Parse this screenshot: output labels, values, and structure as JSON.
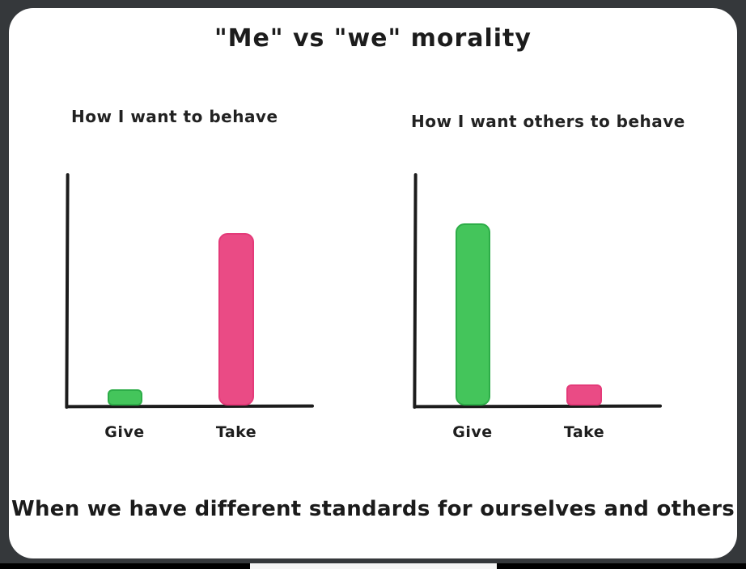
{
  "frame": {
    "background_color": "#35383b",
    "card_color": "#ffffff",
    "bottom_strip_color": "#000000",
    "bottom_peek_color": "#f5f5f5",
    "text_color": "#1c1c1c"
  },
  "title": "\"Me\" vs \"we\" morality",
  "caption": "When we have different standards for ourselves and others",
  "chart_data": [
    {
      "type": "bar",
      "title": "How I want to behave",
      "categories": [
        "Give",
        "Take"
      ],
      "values": [
        0.07,
        0.74
      ],
      "ylim": [
        0,
        1
      ],
      "grid": false,
      "legend": false,
      "axis_color": "#1c1c1c",
      "colors": [
        "#44c55b",
        "#ea4b85"
      ],
      "edge_colors": [
        "#2dad48",
        "#e43a79"
      ]
    },
    {
      "type": "bar",
      "title": "How I want others to behave",
      "categories": [
        "Give",
        "Take"
      ],
      "values": [
        0.78,
        0.09
      ],
      "ylim": [
        0,
        1
      ],
      "grid": false,
      "legend": false,
      "axis_color": "#1c1c1c",
      "colors": [
        "#44c55b",
        "#ea4b85"
      ],
      "edge_colors": [
        "#2dad48",
        "#e43a79"
      ]
    }
  ]
}
